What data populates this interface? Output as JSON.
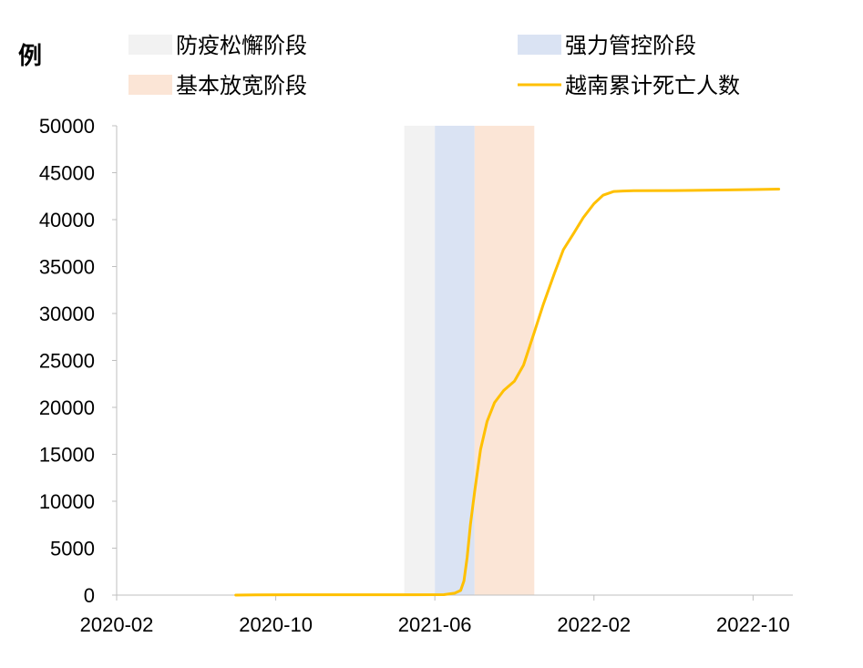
{
  "chart_data": {
    "type": "line",
    "unit_label": "例",
    "title": "",
    "xlabel": "",
    "ylabel": "",
    "ylim": [
      0,
      50000
    ],
    "xlim": [
      "2020-02",
      "2022-12"
    ],
    "y_ticks": [
      "0",
      "5000",
      "10000",
      "15000",
      "20000",
      "25000",
      "30000",
      "35000",
      "40000",
      "45000",
      "50000"
    ],
    "x_ticks": [
      "2020-02",
      "2020-10",
      "2021-06",
      "2022-02",
      "2022-10"
    ],
    "grid": false,
    "legend_position": "top",
    "phases": [
      {
        "name": "防疫松懈阶段",
        "start": "2021-04-15",
        "end": "2021-06-01",
        "color": "#f2f2f2"
      },
      {
        "name": "强力管控阶段",
        "start": "2021-06-01",
        "end": "2021-08-01",
        "color": "#dae3f3"
      },
      {
        "name": "基本放宽阶段",
        "start": "2021-08-01",
        "end": "2021-11-01",
        "color": "#fbe5d6"
      }
    ],
    "series": [
      {
        "name": "越南累计死亡人数",
        "color": "#ffc000",
        "x": [
          "2020-07-31",
          "2020-09-01",
          "2020-11-01",
          "2021-01-01",
          "2021-03-01",
          "2021-05-01",
          "2021-06-15",
          "2021-07-01",
          "2021-07-10",
          "2021-07-15",
          "2021-07-20",
          "2021-07-25",
          "2021-08-01",
          "2021-08-10",
          "2021-08-20",
          "2021-09-01",
          "2021-09-15",
          "2021-10-01",
          "2021-10-15",
          "2021-11-01",
          "2021-11-15",
          "2021-12-01",
          "2021-12-15",
          "2022-01-01",
          "2022-01-15",
          "2022-02-01",
          "2022-02-15",
          "2022-03-01",
          "2022-03-15",
          "2022-04-01",
          "2022-06-01",
          "2022-08-01",
          "2022-10-01",
          "2022-11-10"
        ],
        "values": [
          0,
          30,
          35,
          35,
          35,
          35,
          50,
          200,
          500,
          1500,
          4000,
          7500,
          11000,
          15500,
          18500,
          20500,
          21800,
          22800,
          24500,
          28000,
          31000,
          34200,
          36800,
          38600,
          40200,
          41700,
          42600,
          43000,
          43050,
          43080,
          43100,
          43150,
          43200,
          43250
        ]
      }
    ]
  }
}
